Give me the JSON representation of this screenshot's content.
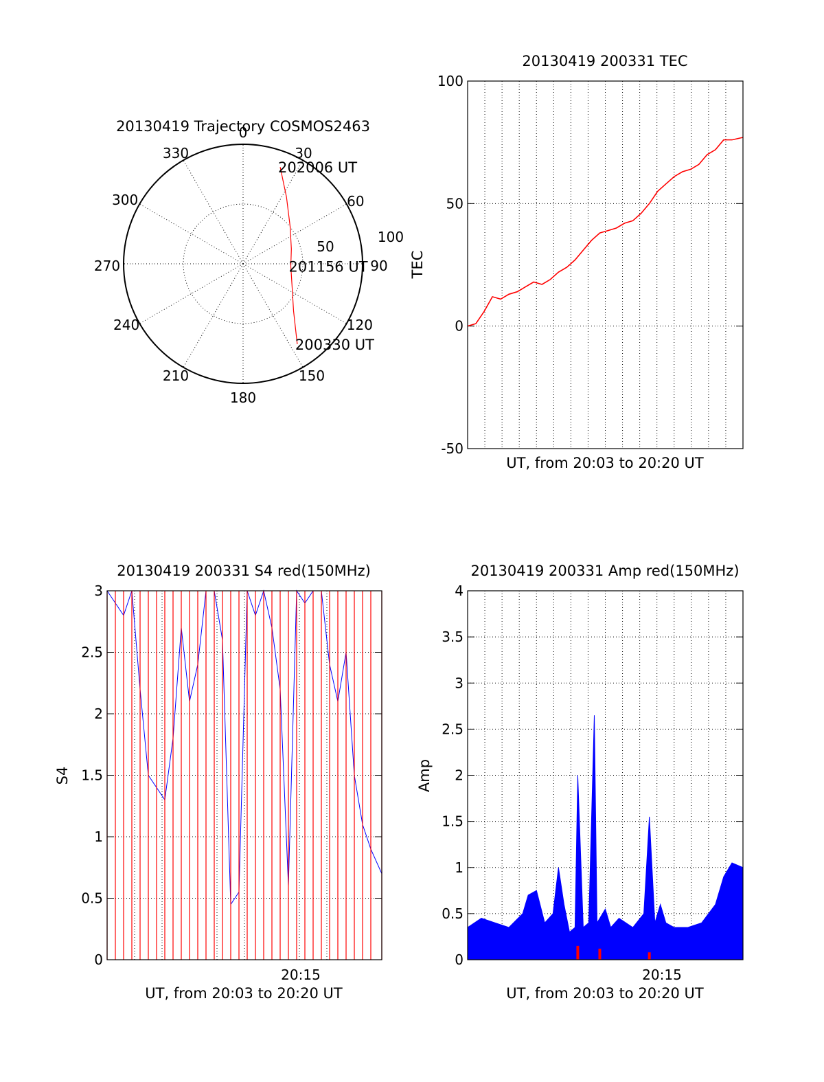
{
  "chart_data": [
    {
      "type": "polar",
      "title": "20130419 Trajectory COSMOS2463",
      "angle_labels": [
        "0",
        "30",
        "60",
        "90",
        "120",
        "150",
        "180",
        "210",
        "240",
        "270",
        "300",
        "330"
      ],
      "radial_labels": [
        "50",
        "100"
      ],
      "series": [
        {
          "color": "#ff0000",
          "points": [
            {
              "az": 21,
              "el": 12
            },
            {
              "az": 33,
              "el": 30
            },
            {
              "az": 52,
              "el": 45
            },
            {
              "az": 73,
              "el": 52
            },
            {
              "az": 93,
              "el": 54
            },
            {
              "az": 113,
              "el": 50
            },
            {
              "az": 133,
              "el": 38
            },
            {
              "az": 146,
              "el": 17
            }
          ]
        }
      ],
      "annotations": [
        {
          "text": "202006 UT",
          "az": 21,
          "el": 12
        },
        {
          "text": "201156 UT",
          "az": 93,
          "el": 54
        },
        {
          "text": "200330 UT",
          "az": 146,
          "el": 17
        }
      ]
    },
    {
      "type": "line",
      "title": "20130419 200331 TEC",
      "ylabel": "TEC",
      "xlabel": "UT, from 20:03 to 20:20 UT",
      "ylim": [
        -50,
        100
      ],
      "yticks": [
        "-50",
        "0",
        "50",
        "100"
      ],
      "grid": true,
      "series": [
        {
          "color": "#ff0000",
          "x": [
            0.0,
            0.03,
            0.06,
            0.09,
            0.12,
            0.15,
            0.18,
            0.21,
            0.24,
            0.27,
            0.3,
            0.33,
            0.36,
            0.39,
            0.42,
            0.45,
            0.48,
            0.51,
            0.54,
            0.57,
            0.6,
            0.63,
            0.66,
            0.69,
            0.72,
            0.75,
            0.78,
            0.81,
            0.84,
            0.87,
            0.9,
            0.93,
            0.96,
            1.0
          ],
          "values": [
            0,
            1,
            6,
            12,
            11,
            13,
            14,
            16,
            18,
            17,
            19,
            22,
            24,
            27,
            31,
            35,
            38,
            39,
            40,
            42,
            43,
            46,
            50,
            55,
            58,
            61,
            63,
            64,
            66,
            70,
            72,
            76,
            76,
            77
          ]
        }
      ]
    },
    {
      "type": "line",
      "title": "20130419 200331 S4 red(150MHz)",
      "ylabel": "S4",
      "xlabel": "UT, from 20:03 to 20:20 UT",
      "xtick_label": "20:15",
      "ylim": [
        0,
        3
      ],
      "yticks": [
        "0",
        "0.5",
        "1",
        "1.5",
        "2",
        "2.5",
        "3"
      ],
      "grid": true,
      "series": [
        {
          "color": "#0000ff",
          "x": [
            0.0,
            0.03,
            0.06,
            0.09,
            0.12,
            0.15,
            0.18,
            0.21,
            0.24,
            0.27,
            0.3,
            0.33,
            0.36,
            0.39,
            0.42,
            0.45,
            0.48,
            0.51,
            0.54,
            0.57,
            0.6,
            0.63,
            0.66,
            0.69,
            0.72,
            0.75,
            0.78,
            0.81,
            0.84,
            0.87,
            0.9,
            0.93,
            0.96,
            1.0
          ],
          "values": [
            3,
            2.9,
            2.8,
            3,
            2.2,
            1.5,
            1.4,
            1.3,
            1.8,
            2.7,
            2.1,
            2.4,
            3,
            3,
            2.6,
            0.45,
            0.55,
            3,
            2.8,
            3,
            2.7,
            2.2,
            0.6,
            3,
            2.9,
            3,
            3,
            2.4,
            2.1,
            2.5,
            1.5,
            1.1,
            0.9,
            0.7
          ]
        },
        {
          "color": "#ff0000",
          "x": [
            0.0,
            0.03,
            0.06,
            0.09,
            0.12,
            0.15,
            0.18,
            0.21,
            0.24,
            0.27,
            0.3,
            0.33,
            0.36,
            0.39,
            0.42,
            0.45,
            0.48,
            0.51,
            0.54,
            0.57,
            0.6,
            0.63,
            0.66,
            0.69,
            0.72,
            0.75,
            0.78,
            0.81,
            0.84,
            0.87,
            0.9,
            0.93,
            0.96,
            1.0
          ],
          "values": [
            0,
            3,
            0,
            3,
            0,
            3,
            0,
            3,
            0,
            3,
            0,
            3,
            0,
            3,
            0,
            3,
            0,
            3,
            0,
            3,
            0,
            3,
            0,
            3,
            0,
            3,
            0,
            3,
            0,
            3,
            0,
            3,
            0,
            3
          ]
        }
      ]
    },
    {
      "type": "area",
      "title": "20130419 200331 Amp red(150MHz)",
      "ylabel": "Amp",
      "xlabel": "UT, from 20:03 to 20:20 UT",
      "xtick_label": "20:15",
      "ylim": [
        0,
        4
      ],
      "yticks": [
        "0",
        "0.5",
        "1",
        "1.5",
        "2",
        "2.5",
        "3",
        "3.5",
        "4"
      ],
      "grid": true,
      "series": [
        {
          "color": "#0000ff",
          "x": [
            0.0,
            0.05,
            0.1,
            0.15,
            0.2,
            0.22,
            0.25,
            0.28,
            0.31,
            0.33,
            0.35,
            0.37,
            0.39,
            0.4,
            0.42,
            0.44,
            0.46,
            0.47,
            0.48,
            0.5,
            0.52,
            0.55,
            0.6,
            0.64,
            0.66,
            0.68,
            0.7,
            0.72,
            0.75,
            0.8,
            0.85,
            0.9,
            0.93,
            0.96,
            1.0
          ],
          "values": [
            0.35,
            0.45,
            0.4,
            0.35,
            0.5,
            0.7,
            0.75,
            0.4,
            0.5,
            1.0,
            0.6,
            0.3,
            0.35,
            2.0,
            0.35,
            0.4,
            2.65,
            0.4,
            0.45,
            0.55,
            0.35,
            0.45,
            0.35,
            0.5,
            1.55,
            0.4,
            0.6,
            0.4,
            0.35,
            0.35,
            0.4,
            0.6,
            0.9,
            1.05,
            1.0
          ]
        },
        {
          "color": "#ff0000",
          "x": [
            0.4,
            0.48,
            0.66
          ],
          "values": [
            0.15,
            0.12,
            0.08
          ]
        }
      ]
    }
  ]
}
